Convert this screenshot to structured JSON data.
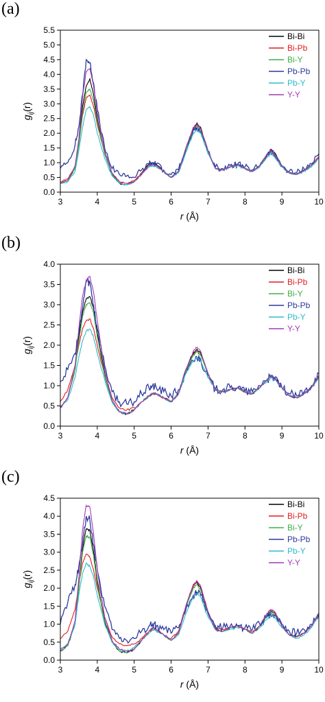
{
  "chart_data": [
    {
      "type": "line",
      "panel_label": "(a)",
      "xlabel": "r (Å)",
      "ylabel": "gij(r)",
      "xlim": [
        3,
        10
      ],
      "ylim": [
        0,
        5.5
      ],
      "xticks": [
        3,
        4,
        5,
        6,
        7,
        8,
        9,
        10
      ],
      "yticks": [
        "0.0",
        "0.5",
        "1.0",
        "1.5",
        "2.0",
        "2.5",
        "3.0",
        "3.5",
        "4.0",
        "4.5",
        "5.0",
        "5.5"
      ],
      "legend_position": "top-right",
      "grid": false,
      "x": [
        3.0,
        3.2,
        3.4,
        3.5,
        3.6,
        3.7,
        3.8,
        3.9,
        4.0,
        4.2,
        4.4,
        4.6,
        4.8,
        5.0,
        5.2,
        5.4,
        5.5,
        5.6,
        5.8,
        6.0,
        6.2,
        6.4,
        6.6,
        6.7,
        6.8,
        7.0,
        7.2,
        7.4,
        7.6,
        7.8,
        8.0,
        8.2,
        8.4,
        8.6,
        8.7,
        8.8,
        9.0,
        9.2,
        9.4,
        9.6,
        9.8,
        10.0
      ],
      "series": [
        {
          "name": "Bi-Bi",
          "color": "#000000",
          "values": [
            0.3,
            0.4,
            0.8,
            1.7,
            2.9,
            3.6,
            3.85,
            3.3,
            2.5,
            1.3,
            0.6,
            0.3,
            0.25,
            0.35,
            0.65,
            0.95,
            1.0,
            0.95,
            0.7,
            0.5,
            0.7,
            1.5,
            2.2,
            2.35,
            2.2,
            1.4,
            0.8,
            0.75,
            0.85,
            0.95,
            0.8,
            0.7,
            0.9,
            1.3,
            1.45,
            1.35,
            0.9,
            0.65,
            0.6,
            0.75,
            0.9,
            1.2
          ]
        },
        {
          "name": "Bi-Pb",
          "color": "#e41a1c",
          "values": [
            0.35,
            0.45,
            0.85,
            1.6,
            2.6,
            3.2,
            3.3,
            2.9,
            2.3,
            1.3,
            0.65,
            0.35,
            0.3,
            0.4,
            0.65,
            0.9,
            0.95,
            0.9,
            0.7,
            0.5,
            0.7,
            1.45,
            2.15,
            2.3,
            2.15,
            1.4,
            0.8,
            0.75,
            0.85,
            0.95,
            0.8,
            0.7,
            0.9,
            1.3,
            1.4,
            1.3,
            0.9,
            0.65,
            0.6,
            0.75,
            0.9,
            1.2
          ]
        },
        {
          "name": "Bi-Y",
          "color": "#3cb043",
          "values": [
            0.3,
            0.4,
            0.8,
            1.6,
            2.7,
            3.4,
            3.5,
            3.1,
            2.4,
            1.3,
            0.6,
            0.3,
            0.25,
            0.35,
            0.6,
            0.9,
            0.95,
            0.9,
            0.7,
            0.5,
            0.7,
            1.45,
            2.1,
            2.25,
            2.1,
            1.35,
            0.8,
            0.75,
            0.85,
            0.95,
            0.8,
            0.7,
            0.9,
            1.25,
            1.4,
            1.3,
            0.9,
            0.65,
            0.6,
            0.75,
            0.9,
            1.2
          ]
        },
        {
          "name": "Pb-Pb",
          "color": "#2b3a9c",
          "values": [
            0.8,
            1.0,
            1.6,
            2.2,
            3.3,
            4.5,
            4.4,
            3.7,
            2.8,
            1.5,
            0.8,
            0.6,
            0.55,
            0.5,
            0.75,
            0.95,
            1.0,
            0.95,
            0.75,
            0.6,
            0.75,
            1.4,
            2.1,
            2.2,
            2.05,
            1.4,
            0.85,
            0.8,
            0.9,
            0.95,
            0.85,
            0.75,
            0.9,
            1.25,
            1.35,
            1.25,
            0.9,
            0.7,
            0.65,
            0.8,
            0.95,
            1.3
          ]
        },
        {
          "name": "Pb-Y",
          "color": "#2bbccf",
          "values": [
            0.3,
            0.35,
            0.7,
            1.4,
            2.2,
            2.8,
            2.9,
            2.6,
            2.0,
            1.15,
            0.55,
            0.3,
            0.25,
            0.35,
            0.6,
            0.85,
            0.9,
            0.85,
            0.7,
            0.5,
            0.65,
            1.35,
            2.0,
            2.1,
            2.0,
            1.3,
            0.8,
            0.75,
            0.85,
            0.9,
            0.8,
            0.7,
            0.85,
            1.2,
            1.3,
            1.2,
            0.85,
            0.65,
            0.6,
            0.7,
            0.85,
            1.15
          ]
        },
        {
          "name": "Y-Y",
          "color": "#a23ab5",
          "values": [
            0.3,
            0.4,
            0.9,
            1.8,
            3.2,
            4.1,
            4.2,
            3.6,
            2.7,
            1.4,
            0.65,
            0.35,
            0.3,
            0.35,
            0.6,
            0.9,
            0.95,
            0.9,
            0.7,
            0.5,
            0.7,
            1.5,
            2.2,
            2.3,
            2.15,
            1.4,
            0.8,
            0.75,
            0.85,
            0.95,
            0.8,
            0.7,
            0.9,
            1.3,
            1.4,
            1.3,
            0.9,
            0.65,
            0.6,
            0.75,
            0.9,
            1.2
          ]
        }
      ]
    },
    {
      "type": "line",
      "panel_label": "(b)",
      "xlabel": "r (Å)",
      "ylabel": "gij(r)",
      "xlim": [
        3,
        10
      ],
      "ylim": [
        0,
        4.0
      ],
      "xticks": [
        3,
        4,
        5,
        6,
        7,
        8,
        9,
        10
      ],
      "yticks": [
        "0.0",
        "0.5",
        "1.0",
        "1.5",
        "2.0",
        "2.5",
        "3.0",
        "3.5",
        "4.0"
      ],
      "legend_position": "top-right",
      "grid": false,
      "x": [
        3.0,
        3.2,
        3.4,
        3.5,
        3.6,
        3.7,
        3.8,
        3.9,
        4.0,
        4.2,
        4.4,
        4.6,
        4.8,
        5.0,
        5.2,
        5.4,
        5.5,
        5.6,
        5.8,
        6.0,
        6.2,
        6.4,
        6.6,
        6.7,
        6.8,
        7.0,
        7.2,
        7.4,
        7.6,
        7.8,
        8.0,
        8.2,
        8.4,
        8.6,
        8.7,
        8.8,
        9.0,
        9.2,
        9.4,
        9.6,
        9.8,
        10.0
      ],
      "series": [
        {
          "name": "Bi-Bi",
          "color": "#000000",
          "values": [
            0.45,
            0.7,
            1.4,
            2.2,
            2.8,
            3.15,
            3.2,
            2.9,
            2.3,
            1.3,
            0.6,
            0.35,
            0.3,
            0.4,
            0.6,
            0.75,
            0.8,
            0.8,
            0.7,
            0.6,
            0.8,
            1.4,
            1.8,
            1.9,
            1.8,
            1.3,
            0.9,
            0.85,
            0.9,
            0.95,
            0.85,
            0.8,
            0.95,
            1.15,
            1.25,
            1.2,
            0.95,
            0.75,
            0.7,
            0.8,
            0.95,
            1.25
          ]
        },
        {
          "name": "Bi-Pb",
          "color": "#e41a1c",
          "values": [
            0.6,
            0.9,
            1.5,
            2.0,
            2.4,
            2.6,
            2.65,
            2.4,
            2.0,
            1.25,
            0.7,
            0.45,
            0.4,
            0.45,
            0.6,
            0.75,
            0.8,
            0.8,
            0.7,
            0.6,
            0.8,
            1.35,
            1.75,
            1.85,
            1.75,
            1.3,
            0.9,
            0.85,
            0.9,
            0.95,
            0.85,
            0.8,
            0.95,
            1.15,
            1.25,
            1.2,
            0.95,
            0.75,
            0.7,
            0.8,
            0.95,
            1.25
          ]
        },
        {
          "name": "Bi-Y",
          "color": "#3cb043",
          "values": [
            0.45,
            0.7,
            1.4,
            2.1,
            2.7,
            3.0,
            3.05,
            2.8,
            2.2,
            1.25,
            0.6,
            0.35,
            0.3,
            0.4,
            0.6,
            0.75,
            0.8,
            0.8,
            0.7,
            0.6,
            0.8,
            1.35,
            1.75,
            1.85,
            1.75,
            1.3,
            0.9,
            0.85,
            0.9,
            0.95,
            0.85,
            0.8,
            0.95,
            1.15,
            1.25,
            1.2,
            0.95,
            0.75,
            0.7,
            0.8,
            0.95,
            1.25
          ]
        },
        {
          "name": "Pb-Pb",
          "color": "#2b3a9c",
          "values": [
            1.1,
            1.4,
            1.8,
            2.3,
            2.9,
            3.6,
            3.55,
            3.0,
            2.4,
            1.5,
            0.85,
            0.6,
            0.55,
            0.6,
            0.8,
            0.95,
            1.0,
            0.95,
            0.85,
            0.75,
            0.9,
            1.3,
            1.6,
            1.7,
            1.65,
            1.2,
            0.9,
            0.9,
            0.95,
            0.95,
            0.85,
            0.85,
            1.0,
            1.15,
            1.2,
            1.15,
            0.95,
            0.8,
            0.75,
            0.85,
            1.0,
            1.3
          ]
        },
        {
          "name": "Pb-Y",
          "color": "#2bbccf",
          "values": [
            0.45,
            0.65,
            1.2,
            1.7,
            2.1,
            2.35,
            2.4,
            2.2,
            1.8,
            1.15,
            0.6,
            0.35,
            0.3,
            0.4,
            0.6,
            0.75,
            0.8,
            0.8,
            0.7,
            0.6,
            0.8,
            1.3,
            1.6,
            1.7,
            1.6,
            1.2,
            0.9,
            0.85,
            0.9,
            0.95,
            0.85,
            0.8,
            0.95,
            1.1,
            1.2,
            1.15,
            0.95,
            0.75,
            0.7,
            0.8,
            0.95,
            1.2
          ]
        },
        {
          "name": "Y-Y",
          "color": "#a23ab5",
          "values": [
            0.45,
            0.7,
            1.5,
            2.4,
            3.2,
            3.6,
            3.7,
            3.3,
            2.6,
            1.4,
            0.65,
            0.35,
            0.3,
            0.4,
            0.6,
            0.75,
            0.8,
            0.8,
            0.7,
            0.6,
            0.8,
            1.4,
            1.85,
            1.95,
            1.85,
            1.3,
            0.9,
            0.85,
            0.9,
            0.95,
            0.85,
            0.8,
            0.95,
            1.15,
            1.25,
            1.2,
            0.95,
            0.75,
            0.7,
            0.8,
            0.95,
            1.25
          ]
        }
      ]
    },
    {
      "type": "line",
      "panel_label": "(c)",
      "xlabel": "r (Å)",
      "ylabel": "gij(r)",
      "xlim": [
        3,
        10
      ],
      "ylim": [
        0,
        4.5
      ],
      "xticks": [
        3,
        4,
        5,
        6,
        7,
        8,
        9,
        10
      ],
      "yticks": [
        "0.0",
        "0.5",
        "1.0",
        "1.5",
        "2.0",
        "2.5",
        "3.0",
        "3.5",
        "4.0",
        "4.5"
      ],
      "legend_position": "top-right",
      "grid": false,
      "x": [
        3.0,
        3.2,
        3.4,
        3.5,
        3.6,
        3.7,
        3.8,
        3.9,
        4.0,
        4.2,
        4.4,
        4.6,
        4.8,
        5.0,
        5.2,
        5.4,
        5.5,
        5.6,
        5.8,
        6.0,
        6.2,
        6.4,
        6.6,
        6.7,
        6.8,
        7.0,
        7.2,
        7.4,
        7.6,
        7.8,
        8.0,
        8.2,
        8.4,
        8.6,
        8.7,
        8.8,
        9.0,
        9.2,
        9.4,
        9.6,
        9.8,
        10.0
      ],
      "series": [
        {
          "name": "Bi-Bi",
          "color": "#000000",
          "values": [
            0.25,
            0.4,
            1.0,
            2.0,
            3.1,
            3.65,
            3.6,
            3.0,
            2.2,
            1.1,
            0.5,
            0.25,
            0.2,
            0.3,
            0.55,
            0.8,
            0.9,
            0.85,
            0.7,
            0.55,
            0.75,
            1.5,
            2.1,
            2.15,
            2.0,
            1.3,
            0.85,
            0.8,
            0.9,
            0.95,
            0.85,
            0.75,
            0.95,
            1.25,
            1.35,
            1.3,
            0.95,
            0.7,
            0.65,
            0.75,
            0.95,
            1.3
          ]
        },
        {
          "name": "Bi-Pb",
          "color": "#e41a1c",
          "values": [
            0.6,
            0.8,
            1.4,
            2.1,
            2.7,
            2.95,
            2.85,
            2.5,
            2.0,
            1.2,
            0.65,
            0.45,
            0.4,
            0.45,
            0.6,
            0.8,
            0.85,
            0.85,
            0.7,
            0.6,
            0.8,
            1.5,
            2.05,
            2.2,
            2.05,
            1.35,
            0.9,
            0.85,
            0.9,
            0.95,
            0.85,
            0.8,
            0.95,
            1.3,
            1.4,
            1.35,
            0.95,
            0.7,
            0.65,
            0.75,
            0.95,
            1.3
          ]
        },
        {
          "name": "Bi-Y",
          "color": "#3cb043",
          "values": [
            0.25,
            0.4,
            1.0,
            2.0,
            3.0,
            3.45,
            3.4,
            2.9,
            2.1,
            1.05,
            0.5,
            0.25,
            0.2,
            0.3,
            0.55,
            0.8,
            0.9,
            0.85,
            0.7,
            0.55,
            0.75,
            1.45,
            2.0,
            2.1,
            1.95,
            1.3,
            0.85,
            0.8,
            0.9,
            0.95,
            0.85,
            0.75,
            0.95,
            1.25,
            1.35,
            1.3,
            0.95,
            0.7,
            0.65,
            0.75,
            0.95,
            1.3
          ]
        },
        {
          "name": "Pb-Pb",
          "color": "#2b3a9c",
          "values": [
            1.0,
            1.6,
            2.1,
            2.6,
            3.2,
            4.0,
            3.9,
            3.2,
            2.5,
            1.5,
            0.85,
            0.6,
            0.55,
            0.6,
            0.8,
            0.95,
            1.0,
            0.95,
            0.85,
            0.75,
            0.9,
            1.4,
            1.8,
            1.9,
            1.8,
            1.3,
            0.95,
            0.9,
            0.95,
            0.95,
            0.9,
            0.85,
            1.0,
            1.2,
            1.3,
            1.25,
            1.0,
            0.8,
            0.75,
            0.85,
            1.0,
            1.3
          ]
        },
        {
          "name": "Pb-Y",
          "color": "#2bbccf",
          "values": [
            0.3,
            0.45,
            1.0,
            1.8,
            2.4,
            2.7,
            2.6,
            2.3,
            1.8,
            1.0,
            0.5,
            0.3,
            0.25,
            0.35,
            0.55,
            0.75,
            0.85,
            0.8,
            0.7,
            0.55,
            0.7,
            1.3,
            1.75,
            1.85,
            1.75,
            1.2,
            0.85,
            0.8,
            0.85,
            0.9,
            0.85,
            0.75,
            0.9,
            1.15,
            1.25,
            1.2,
            0.9,
            0.7,
            0.6,
            0.7,
            0.9,
            1.2
          ]
        },
        {
          "name": "Y-Y",
          "color": "#a23ab5",
          "values": [
            0.25,
            0.45,
            1.1,
            2.3,
            3.6,
            4.3,
            4.25,
            3.5,
            2.5,
            1.2,
            0.55,
            0.3,
            0.25,
            0.3,
            0.55,
            0.8,
            0.9,
            0.85,
            0.7,
            0.55,
            0.75,
            1.5,
            2.1,
            2.2,
            2.05,
            1.35,
            0.85,
            0.8,
            0.9,
            0.95,
            0.85,
            0.75,
            0.95,
            1.3,
            1.4,
            1.35,
            0.95,
            0.7,
            0.65,
            0.75,
            0.95,
            1.3
          ]
        }
      ]
    }
  ]
}
